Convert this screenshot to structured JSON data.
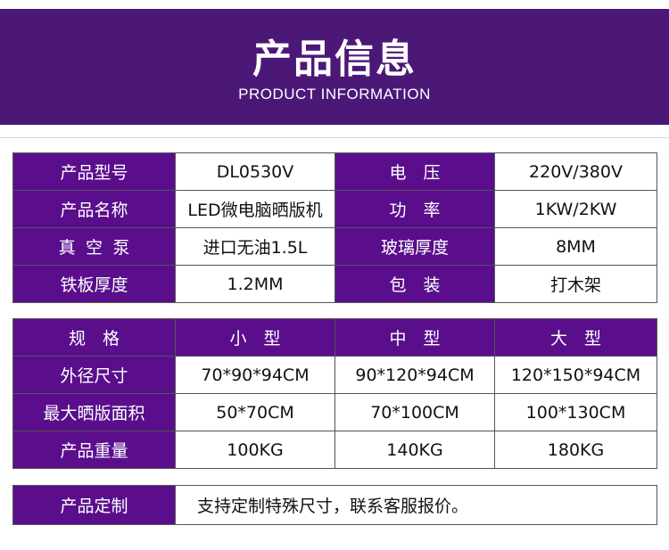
{
  "header": {
    "title": "产品信息",
    "subtitle": "PRODUCT INFORMATION"
  },
  "specs": [
    [
      "产品型号",
      "DL0530V",
      "电　压",
      "220V/380V"
    ],
    [
      "产品名称",
      "LED微电脑晒版机",
      "功　率",
      "1KW/2KW"
    ],
    [
      "真空泵",
      "进口无油1.5L",
      "玻璃厚度",
      "8MM"
    ],
    [
      "铁板厚度",
      "1.2MM",
      "包　装",
      "打木架"
    ]
  ],
  "sizes": {
    "headers": [
      "规　格",
      "小　型",
      "中　型",
      "大　型"
    ],
    "rows": [
      [
        "外径尺寸",
        "70*90*94CM",
        "90*120*94CM",
        "120*150*94CM"
      ],
      [
        "最大晒版面积",
        "50*70CM",
        "70*100CM",
        "100*130CM"
      ],
      [
        "产品重量",
        "100KG",
        "140KG",
        "180KG"
      ]
    ]
  },
  "custom": {
    "label": "产品定制",
    "text": "支持定制特殊尺寸，联系客服报价。"
  }
}
